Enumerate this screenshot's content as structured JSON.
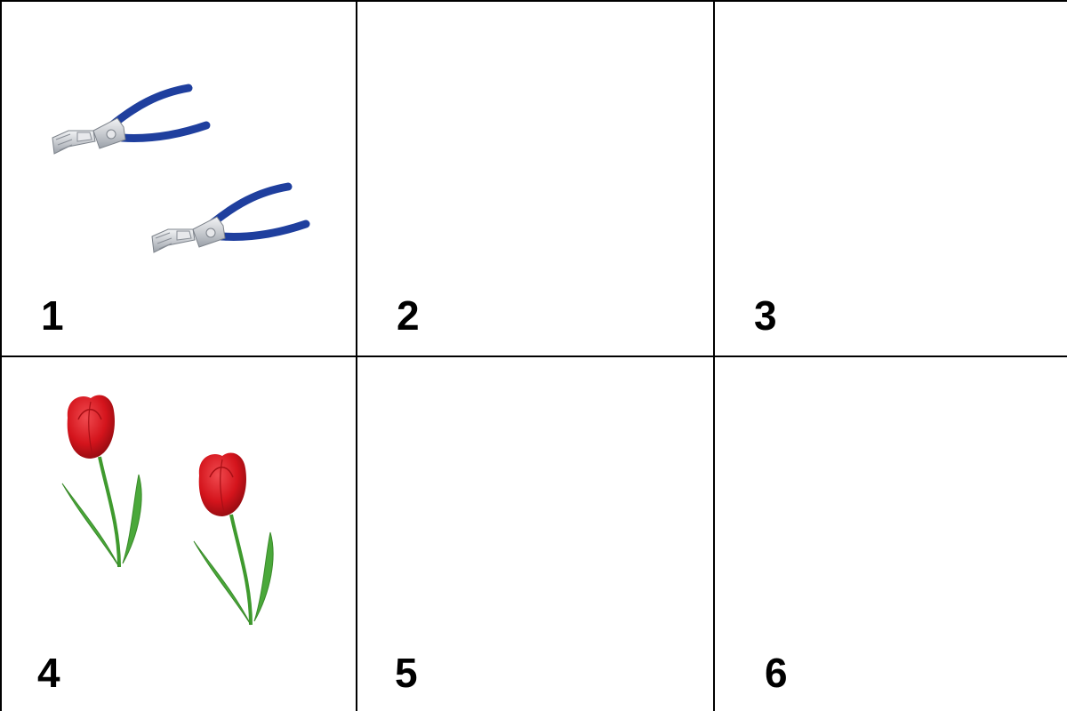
{
  "cells": [
    {
      "label": "1",
      "content": "pliers",
      "count": 2
    },
    {
      "label": "2",
      "content": "empty",
      "count": 0
    },
    {
      "label": "3",
      "content": "empty",
      "count": 0
    },
    {
      "label": "4",
      "content": "tulip",
      "count": 2
    },
    {
      "label": "5",
      "content": "empty",
      "count": 0
    },
    {
      "label": "6",
      "content": "empty",
      "count": 0
    }
  ],
  "colors": {
    "grid_line": "#000000",
    "plier_handle": "#1f3f9e",
    "plier_metal": "#c9ccd1",
    "tulip_petal": "#d4141c",
    "tulip_stem": "#3f9a2e"
  },
  "icons": {
    "pliers": "pliers-icon",
    "tulip": "tulip-icon"
  }
}
